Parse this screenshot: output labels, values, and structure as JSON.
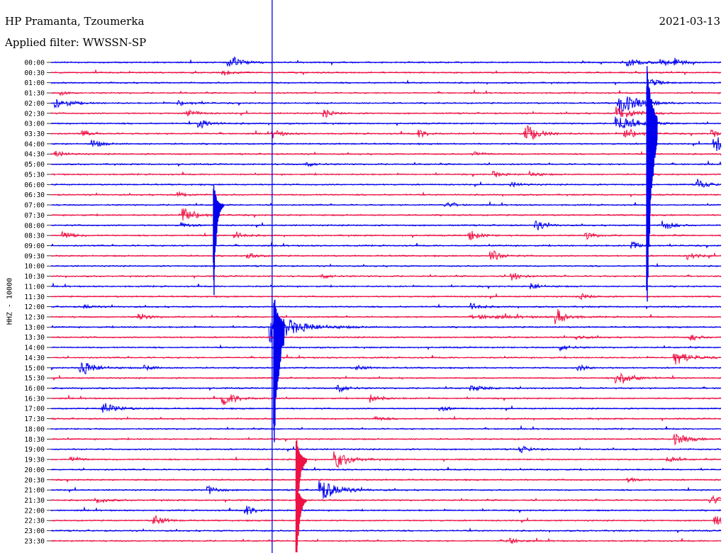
{
  "header": {
    "station": "HP Pramanta, Tzoumerka",
    "filter": "Applied filter: WWSSN-SP",
    "date": "2021-03-13"
  },
  "chart_data": {
    "type": "line",
    "title": "HP Pramanta, Tzoumerka",
    "subtitle": "Applied filter: WWSSN-SP",
    "ylabel": "HHZ - 10000",
    "xlabel": "",
    "date": "2021-03-13",
    "row_labels": [
      "00:00",
      "00:30",
      "01:00",
      "01:30",
      "02:00",
      "02:30",
      "03:00",
      "03:30",
      "04:00",
      "04:30",
      "05:00",
      "05:30",
      "06:00",
      "06:30",
      "07:00",
      "07:30",
      "08:00",
      "08:30",
      "09:00",
      "09:30",
      "10:00",
      "10:30",
      "11:00",
      "11:30",
      "12:00",
      "12:30",
      "13:00",
      "13:30",
      "14:00",
      "14:30",
      "15:00",
      "15:30",
      "16:00",
      "16:30",
      "17:00",
      "17:30",
      "18:00",
      "18:30",
      "19:00",
      "19:30",
      "20:00",
      "20:30",
      "21:00",
      "21:30",
      "22:00",
      "22:30",
      "23:00",
      "23:30"
    ],
    "trace_colors": [
      "#0000ee",
      "#ee1144"
    ],
    "minutes_per_row": 30,
    "events": [
      {
        "row": 0,
        "minute": 8.0,
        "amp": 1.9,
        "decay": 1.2
      },
      {
        "row": 0,
        "minute": 25.9,
        "amp": 1.0,
        "decay": 1.5
      },
      {
        "row": 0,
        "minute": 27.4,
        "amp": 0.8,
        "decay": 0.8
      },
      {
        "row": 0,
        "minute": 28.0,
        "amp": 0.9,
        "decay": 0.8
      },
      {
        "row": 1,
        "minute": 7.8,
        "amp": 0.5,
        "decay": 1.0
      },
      {
        "row": 2,
        "minute": 27.0,
        "amp": 0.7,
        "decay": 1.0
      },
      {
        "row": 3,
        "minute": 0.5,
        "amp": 0.4,
        "decay": 0.8
      },
      {
        "row": 4,
        "minute": 0.3,
        "amp": 1.2,
        "decay": 1.5
      },
      {
        "row": 4,
        "minute": 5.8,
        "amp": 0.5,
        "decay": 1.5
      },
      {
        "row": 4,
        "minute": 25.5,
        "amp": 2.8,
        "decay": 2.0
      },
      {
        "row": 5,
        "minute": 6.2,
        "amp": 0.8,
        "decay": 1.0
      },
      {
        "row": 5,
        "minute": 12.3,
        "amp": 0.8,
        "decay": 1.0
      },
      {
        "row": 5,
        "minute": 25.4,
        "amp": 1.5,
        "decay": 2.0
      },
      {
        "row": 6,
        "minute": 6.7,
        "amp": 1.0,
        "decay": 1.2
      },
      {
        "row": 6,
        "minute": 25.4,
        "amp": 2.0,
        "decay": 2.0
      },
      {
        "row": 7,
        "minute": 1.5,
        "amp": 0.6,
        "decay": 0.8
      },
      {
        "row": 7,
        "minute": 10.0,
        "amp": 0.9,
        "decay": 1.0
      },
      {
        "row": 7,
        "minute": 16.5,
        "amp": 0.9,
        "decay": 1.0
      },
      {
        "row": 7,
        "minute": 21.3,
        "amp": 2.0,
        "decay": 1.5
      },
      {
        "row": 7,
        "minute": 25.8,
        "amp": 1.2,
        "decay": 1.5
      },
      {
        "row": 7,
        "minute": 29.7,
        "amp": 0.7,
        "decay": 0.8
      },
      {
        "row": 8,
        "minute": 1.9,
        "amp": 0.9,
        "decay": 1.0
      },
      {
        "row": 8,
        "minute": 29.8,
        "amp": 1.8,
        "decay": 1.5
      },
      {
        "row": 9,
        "minute": 0.2,
        "amp": 0.8,
        "decay": 1.0
      },
      {
        "row": 9,
        "minute": 19.0,
        "amp": 0.5,
        "decay": 1.0
      },
      {
        "row": 10,
        "minute": 11.5,
        "amp": 0.5,
        "decay": 1.0
      },
      {
        "row": 11,
        "minute": 19.9,
        "amp": 0.6,
        "decay": 1.0
      },
      {
        "row": 11,
        "minute": 21.5,
        "amp": 0.6,
        "decay": 1.0
      },
      {
        "row": 12,
        "minute": 20.7,
        "amp": 0.5,
        "decay": 1.0
      },
      {
        "row": 12,
        "minute": 29.0,
        "amp": 1.2,
        "decay": 1.0
      },
      {
        "row": 13,
        "minute": 5.8,
        "amp": 0.5,
        "decay": 1.0
      },
      {
        "row": 14,
        "minute": 17.7,
        "amp": 0.6,
        "decay": 1.0
      },
      {
        "row": 15,
        "minute": 6.0,
        "amp": 1.6,
        "decay": 1.5
      },
      {
        "row": 16,
        "minute": 5.9,
        "amp": 0.5,
        "decay": 1.0
      },
      {
        "row": 16,
        "minute": 21.8,
        "amp": 1.1,
        "decay": 1.0
      },
      {
        "row": 16,
        "minute": 27.5,
        "amp": 1.1,
        "decay": 1.0
      },
      {
        "row": 17,
        "minute": 0.6,
        "amp": 0.9,
        "decay": 1.0
      },
      {
        "row": 17,
        "minute": 8.3,
        "amp": 0.8,
        "decay": 1.0
      },
      {
        "row": 17,
        "minute": 18.8,
        "amp": 1.2,
        "decay": 1.0
      },
      {
        "row": 17,
        "minute": 24.0,
        "amp": 0.8,
        "decay": 1.0
      },
      {
        "row": 18,
        "minute": 26.1,
        "amp": 0.8,
        "decay": 1.0
      },
      {
        "row": 19,
        "minute": 8.9,
        "amp": 0.6,
        "decay": 1.0
      },
      {
        "row": 19,
        "minute": 19.8,
        "amp": 1.2,
        "decay": 1.0
      },
      {
        "row": 19,
        "minute": 28.6,
        "amp": 0.8,
        "decay": 1.0
      },
      {
        "row": 21,
        "minute": 12.2,
        "amp": 0.5,
        "decay": 1.0
      },
      {
        "row": 21,
        "minute": 20.7,
        "amp": 0.9,
        "decay": 1.0
      },
      {
        "row": 22,
        "minute": 21.6,
        "amp": 0.7,
        "decay": 1.0
      },
      {
        "row": 23,
        "minute": 23.8,
        "amp": 0.6,
        "decay": 1.0
      },
      {
        "row": 24,
        "minute": 1.6,
        "amp": 0.4,
        "decay": 1.0
      },
      {
        "row": 24,
        "minute": 18.9,
        "amp": 0.8,
        "decay": 1.0
      },
      {
        "row": 25,
        "minute": 4.0,
        "amp": 0.8,
        "decay": 1.0
      },
      {
        "row": 25,
        "minute": 19.0,
        "amp": 0.4,
        "decay": 5.0
      },
      {
        "row": 25,
        "minute": 22.7,
        "amp": 1.8,
        "decay": 1.0
      },
      {
        "row": 26,
        "minute": 9.9,
        "amp": 3.5,
        "decay": 3.0
      },
      {
        "row": 27,
        "minute": 23.6,
        "amp": 0.5,
        "decay": 1.0
      },
      {
        "row": 27,
        "minute": 28.7,
        "amp": 0.7,
        "decay": 1.0
      },
      {
        "row": 28,
        "minute": 22.9,
        "amp": 0.7,
        "decay": 1.0
      },
      {
        "row": 29,
        "minute": 28.0,
        "amp": 1.8,
        "decay": 1.5
      },
      {
        "row": 30,
        "minute": 1.4,
        "amp": 1.8,
        "decay": 1.5
      },
      {
        "row": 30,
        "minute": 4.3,
        "amp": 0.5,
        "decay": 1.0
      },
      {
        "row": 30,
        "minute": 13.8,
        "amp": 0.5,
        "decay": 1.0
      },
      {
        "row": 30,
        "minute": 23.7,
        "amp": 0.6,
        "decay": 1.0
      },
      {
        "row": 31,
        "minute": 25.4,
        "amp": 1.8,
        "decay": 1.5
      },
      {
        "row": 32,
        "minute": 12.9,
        "amp": 1.0,
        "decay": 1.0
      },
      {
        "row": 32,
        "minute": 18.9,
        "amp": 0.5,
        "decay": 2.0
      },
      {
        "row": 33,
        "minute": 7.8,
        "amp": 1.5,
        "decay": 1.5
      },
      {
        "row": 33,
        "minute": 14.4,
        "amp": 1.0,
        "decay": 1.0
      },
      {
        "row": 34,
        "minute": 2.4,
        "amp": 1.3,
        "decay": 1.5
      },
      {
        "row": 34,
        "minute": 17.5,
        "amp": 0.5,
        "decay": 1.0
      },
      {
        "row": 35,
        "minute": 14.6,
        "amp": 0.5,
        "decay": 1.0
      },
      {
        "row": 37,
        "minute": 28.0,
        "amp": 1.3,
        "decay": 1.5
      },
      {
        "row": 38,
        "minute": 21.1,
        "amp": 0.7,
        "decay": 1.0
      },
      {
        "row": 39,
        "minute": 1.0,
        "amp": 0.6,
        "decay": 1.0
      },
      {
        "row": 39,
        "minute": 12.8,
        "amp": 2.0,
        "decay": 1.5
      },
      {
        "row": 39,
        "minute": 27.7,
        "amp": 0.6,
        "decay": 1.0
      },
      {
        "row": 41,
        "minute": 25.9,
        "amp": 0.5,
        "decay": 1.0
      },
      {
        "row": 42,
        "minute": 7.1,
        "amp": 0.9,
        "decay": 1.0
      },
      {
        "row": 42,
        "minute": 12.1,
        "amp": 2.5,
        "decay": 2.0
      },
      {
        "row": 43,
        "minute": 2.1,
        "amp": 0.8,
        "decay": 1.0
      },
      {
        "row": 43,
        "minute": 29.6,
        "amp": 1.1,
        "decay": 1.0
      },
      {
        "row": 44,
        "minute": 8.8,
        "amp": 1.1,
        "decay": 1.0
      },
      {
        "row": 45,
        "minute": 4.7,
        "amp": 1.2,
        "decay": 1.0
      },
      {
        "row": 45,
        "minute": 29.8,
        "amp": 1.1,
        "decay": 1.0
      },
      {
        "row": 47,
        "minute": 20.5,
        "amp": 0.8,
        "decay": 1.0
      }
    ],
    "large_spikes": [
      {
        "row": 6,
        "minute": 26.7,
        "amp": 18.0,
        "decay": 3.0,
        "up": 6.0
      },
      {
        "row": 14,
        "minute": 7.3,
        "amp": 9.0,
        "decay": 1.5,
        "up": 2.0
      },
      {
        "row": 26,
        "minute": 10.0,
        "amp": 12.0,
        "decay": 3.0,
        "up": 3.0
      },
      {
        "row": 39,
        "minute": 11.0,
        "amp": 6.0,
        "decay": 2.0,
        "up": 2.0
      },
      {
        "row": 43,
        "minute": 11.0,
        "amp": 8.0,
        "decay": 1.5,
        "up": 2.0
      }
    ],
    "annotations": [
      {
        "label": "vertical-marker",
        "row_start": 0,
        "row_end": 47,
        "minute": 9.9
      }
    ]
  }
}
